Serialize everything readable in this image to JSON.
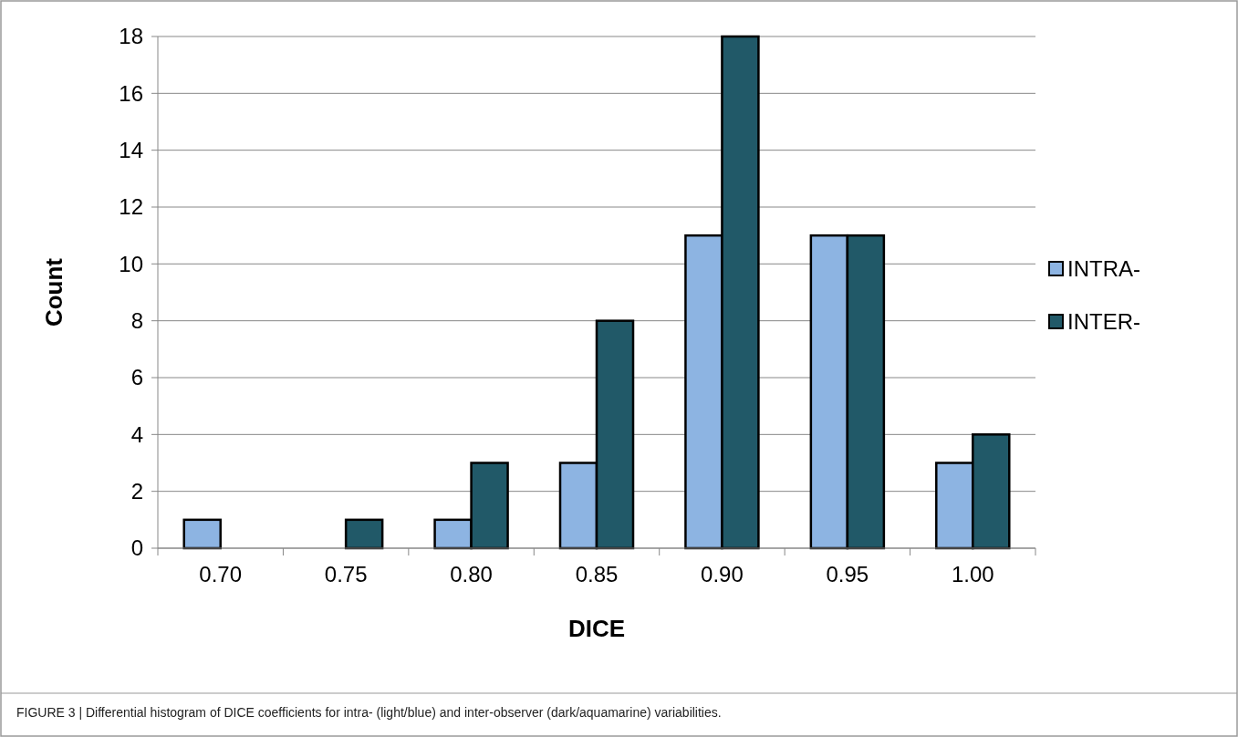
{
  "chart_data": {
    "type": "bar",
    "xlabel": "DICE",
    "ylabel": "Count",
    "categories": [
      "0.70",
      "0.75",
      "0.80",
      "0.85",
      "0.90",
      "0.95",
      "1.00"
    ],
    "series": [
      {
        "name": "INTRA-",
        "color": "#8db4e2",
        "values": [
          1,
          0,
          1,
          3,
          11,
          11,
          3
        ]
      },
      {
        "name": "INTER-",
        "color": "#215968",
        "values": [
          0,
          1,
          3,
          8,
          18,
          11,
          4
        ]
      }
    ],
    "ylim": [
      0,
      18
    ],
    "yticks": [
      0,
      2,
      4,
      6,
      8,
      10,
      12,
      14,
      16,
      18
    ],
    "grid": "y",
    "legend": "right",
    "annotations": [
      "FIGURE 3 | Differential histogram of DICE coefficients for intra- (light/blue) and inter-observer (dark/aquamarine) variabilities."
    ]
  }
}
